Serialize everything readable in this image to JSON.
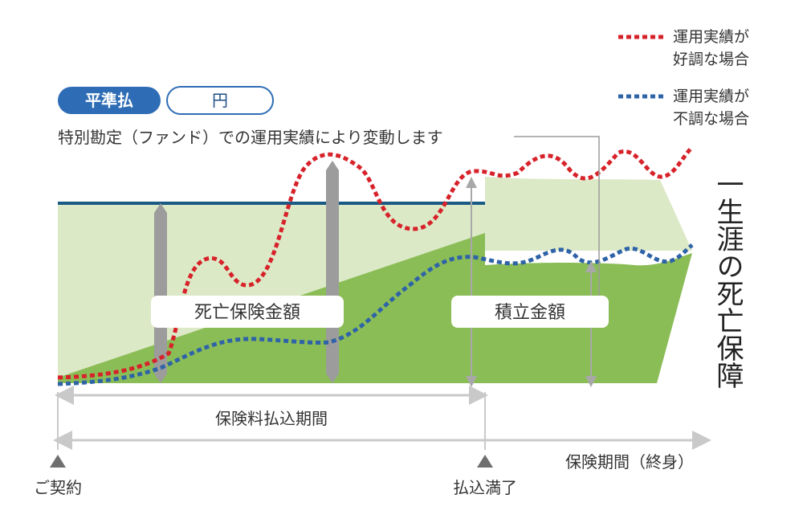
{
  "legend": {
    "good": {
      "line1": "運用実績が",
      "line2": "好調な場合",
      "color": "#d7222a"
    },
    "bad": {
      "line1": "運用実績が",
      "line2": "不調な場合",
      "color": "#2e63a8"
    }
  },
  "badges": {
    "payment_type": "平準払",
    "currency": "円"
  },
  "note": "特別勘定（ファンド）での運用実績により変動します",
  "labels": {
    "death_benefit": "死亡保険金額",
    "reserve": "積立金額",
    "lifetime_death": "一生涯の死亡保障"
  },
  "periods": {
    "premium_payment": "保険料払込期間",
    "coverage": "保険期間（終身）"
  },
  "milestones": {
    "contract": "ご契約",
    "payment_complete": "払込満了"
  },
  "colors": {
    "light_green": "#dce9c7",
    "dark_green": "#8bbd57",
    "basic_line": "#1a5a85",
    "gray_bar": "#9c9c9c",
    "badge_blue": "#2e6db5",
    "arrow_gray": "#c9c9c9"
  }
}
